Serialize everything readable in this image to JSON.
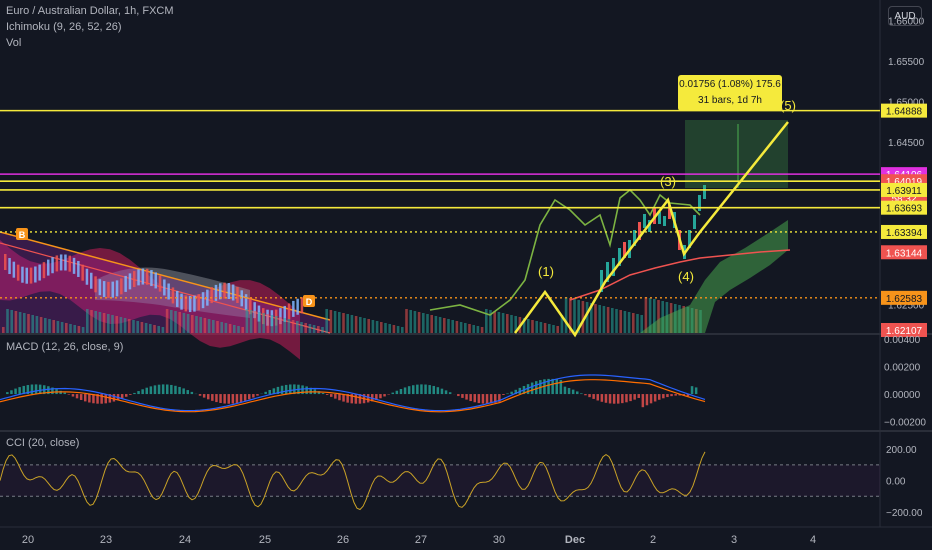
{
  "header": {
    "symbol_line": "Euro / Australian Dollar, 1h, FXCM",
    "indicator_ichimoku": "Ichimoku (9, 26, 52, 26)",
    "indicator_vol": "Vol",
    "currency": "AUD"
  },
  "measure": {
    "line1": "0.01756 (1.08%) 175.6",
    "line2": "31 bars, 1d 7h"
  },
  "colors": {
    "background": "#131722",
    "yellow": "#f5ea3c",
    "magenta": "#e030e0",
    "red": "#ef5350",
    "green_cloud": "#4caf50",
    "macd": "#2962ff",
    "signal": "#ff6d00",
    "cci": "#c9a227",
    "hist_up": "#26a69a",
    "hist_down": "#ef5350",
    "chikou": "#7cb342",
    "orange_marker": "#f7931a"
  },
  "chart_data": [
    {
      "type": "candlestick",
      "pane": "price",
      "x_axis_labels": [
        "20",
        "23",
        "24",
        "25",
        "26",
        "27",
        "30",
        "Dec",
        "2",
        "3",
        "4"
      ],
      "y_ticks": [
        1.66,
        1.655,
        1.65,
        1.645,
        1.64,
        1.635,
        1.63,
        1.625
      ],
      "y_tick_labels": [
        "1.66000",
        "1.65500",
        "1.65000",
        "1.64500",
        "",
        "",
        "",
        "1.62500"
      ],
      "ylim": [
        1.6215,
        1.6625
      ],
      "price_labels": [
        {
          "text": "1.64888",
          "value": 1.64888,
          "style": "yellow"
        },
        {
          "text": "1.64106",
          "value": 1.64106,
          "style": "magenta"
        },
        {
          "text": "1.64019",
          "value": 1.64019,
          "style": "red"
        },
        {
          "text": "58:32",
          "value": 1.6381,
          "style": "red"
        },
        {
          "text": "1.63911",
          "value": 1.63911,
          "style": "yellow"
        },
        {
          "text": "1.63693",
          "value": 1.63693,
          "style": "yellow"
        },
        {
          "text": "1.63394",
          "value": 1.63394,
          "style": "yellow"
        },
        {
          "text": "1.63144",
          "value": 1.63144,
          "style": "red"
        },
        {
          "text": "1.62583",
          "value": 1.62583,
          "style": "orange"
        },
        {
          "text": "1.62107",
          "value": 1.62107,
          "style": "red"
        }
      ],
      "horizontal_lines": [
        {
          "value": 1.64888,
          "color": "yellow",
          "dash": false
        },
        {
          "value": 1.64106,
          "color": "magenta",
          "dash": false
        },
        {
          "value": 1.64019,
          "color": "yellow",
          "dash": false
        },
        {
          "value": 1.63911,
          "color": "yellow",
          "dash": false
        },
        {
          "value": 1.63693,
          "color": "yellow",
          "dash": false
        },
        {
          "value": 1.63394,
          "color": "yellow",
          "dash": true
        },
        {
          "value": 1.62583,
          "color": "orange",
          "dash": true
        }
      ],
      "wave_labels": [
        "(1)",
        "(3)",
        "(4)",
        "(5)"
      ],
      "markers": [
        "B",
        "D"
      ]
    },
    {
      "type": "line",
      "pane": "macd",
      "title": "MACD (12, 26, close, 9)",
      "y_tick_labels": [
        "0.00400",
        "0.00200",
        "0.00000",
        "−0.00200"
      ],
      "y_ticks": [
        0.004,
        0.002,
        0.0,
        -0.002
      ],
      "ylim": [
        -0.0026,
        0.0042
      ]
    },
    {
      "type": "line",
      "pane": "cci",
      "title": "CCI (20, close)",
      "y_tick_labels": [
        "200.00",
        "0.00",
        "−200.00"
      ],
      "y_ticks": [
        200,
        0,
        -200
      ],
      "ylim": [
        -290,
        310
      ]
    }
  ]
}
